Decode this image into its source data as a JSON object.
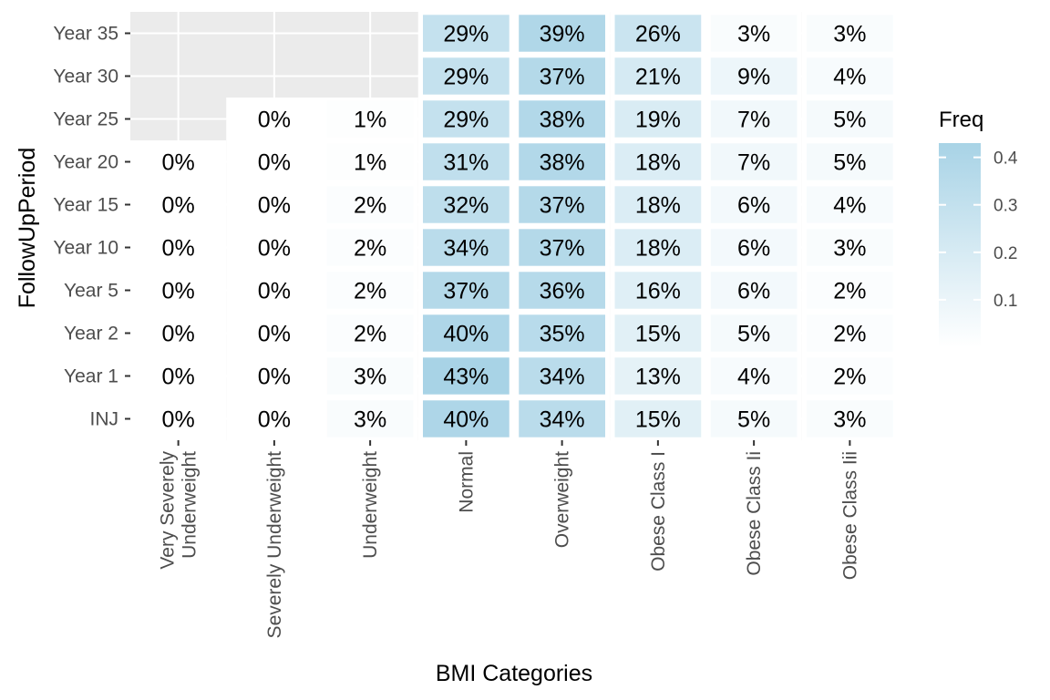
{
  "chart_data": {
    "type": "heatmap",
    "title": "",
    "xlabel": "BMI Categories",
    "ylabel": "FollowUpPeriod",
    "x_categories": [
      [
        "Very Severely",
        "Underweight"
      ],
      [
        "Severely Underweight"
      ],
      [
        "Underweight"
      ],
      [
        "Normal"
      ],
      [
        "Overweight"
      ],
      [
        "Obese Class I"
      ],
      [
        "Obese Class Ii"
      ],
      [
        "Obese Class Iii"
      ]
    ],
    "y_categories": [
      "INJ",
      "Year 1",
      "Year 2",
      "Year 5",
      "Year 10",
      "Year 15",
      "Year 20",
      "Year 25",
      "Year 30",
      "Year 35"
    ],
    "values": [
      [
        0.0,
        0.0,
        0.03,
        0.4,
        0.34,
        0.15,
        0.05,
        0.03
      ],
      [
        0.0,
        0.0,
        0.03,
        0.43,
        0.34,
        0.13,
        0.04,
        0.02
      ],
      [
        0.0,
        0.0,
        0.02,
        0.4,
        0.35,
        0.15,
        0.05,
        0.02
      ],
      [
        0.0,
        0.0,
        0.02,
        0.37,
        0.36,
        0.16,
        0.06,
        0.02
      ],
      [
        0.0,
        0.0,
        0.02,
        0.34,
        0.37,
        0.18,
        0.06,
        0.03
      ],
      [
        0.0,
        0.0,
        0.02,
        0.32,
        0.37,
        0.18,
        0.06,
        0.04
      ],
      [
        0.0,
        0.0,
        0.01,
        0.31,
        0.38,
        0.18,
        0.07,
        0.05
      ],
      [
        null,
        0.0,
        0.01,
        0.29,
        0.38,
        0.19,
        0.07,
        0.05
      ],
      [
        null,
        null,
        null,
        0.29,
        0.37,
        0.21,
        0.09,
        0.04
      ],
      [
        null,
        null,
        null,
        0.29,
        0.39,
        0.26,
        0.03,
        0.03
      ]
    ],
    "cell_labels": [
      [
        "0%",
        "0%",
        "3%",
        "40%",
        "34%",
        "15%",
        "5%",
        "3%"
      ],
      [
        "0%",
        "0%",
        "3%",
        "43%",
        "34%",
        "13%",
        "4%",
        "2%"
      ],
      [
        "0%",
        "0%",
        "2%",
        "40%",
        "35%",
        "15%",
        "5%",
        "2%"
      ],
      [
        "0%",
        "0%",
        "2%",
        "37%",
        "36%",
        "16%",
        "6%",
        "2%"
      ],
      [
        "0%",
        "0%",
        "2%",
        "34%",
        "37%",
        "18%",
        "6%",
        "3%"
      ],
      [
        "0%",
        "0%",
        "2%",
        "32%",
        "37%",
        "18%",
        "6%",
        "4%"
      ],
      [
        "0%",
        "0%",
        "1%",
        "31%",
        "38%",
        "18%",
        "7%",
        "5%"
      ],
      [
        null,
        "0%",
        "1%",
        "29%",
        "38%",
        "19%",
        "7%",
        "5%"
      ],
      [
        null,
        null,
        null,
        "29%",
        "37%",
        "21%",
        "9%",
        "4%"
      ],
      [
        null,
        null,
        null,
        "29%",
        "39%",
        "26%",
        "3%",
        "3%"
      ]
    ],
    "legend": {
      "title": "Freq",
      "ticks": [
        0.1,
        0.2,
        0.3,
        0.4
      ],
      "tick_labels": [
        "0.1",
        "0.2",
        "0.3",
        "0.4"
      ],
      "range": [
        0,
        0.43
      ],
      "low_color": "#ffffff",
      "high_color": "#a8d3e6",
      "placement": "right"
    },
    "panel_background": "#ebebeb",
    "grid": true
  }
}
